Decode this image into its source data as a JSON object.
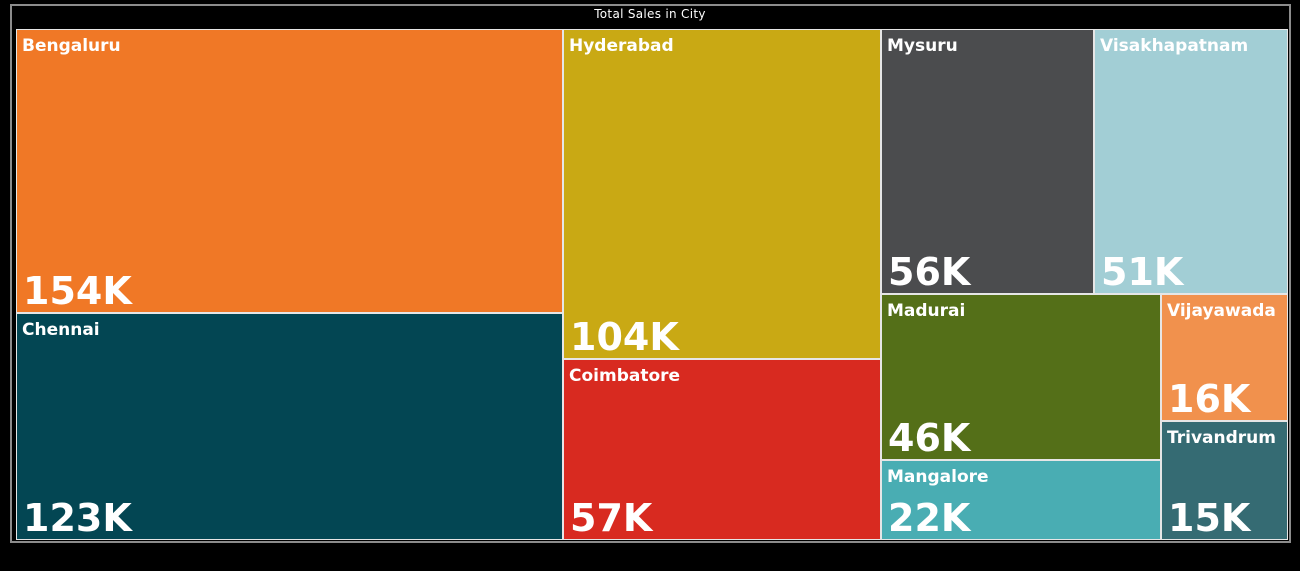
{
  "chart_data": {
    "type": "treemap",
    "title": "Total Sales in City",
    "items": [
      {
        "name": "Bengaluru",
        "value": 154000,
        "label": "154K",
        "color": "#f07826"
      },
      {
        "name": "Chennai",
        "value": 123000,
        "label": "123K",
        "color": "#034653"
      },
      {
        "name": "Hyderabad",
        "value": 104000,
        "label": "104K",
        "color": "#c9a914"
      },
      {
        "name": "Coimbatore",
        "value": 57000,
        "label": "57K",
        "color": "#d82a20"
      },
      {
        "name": "Mysuru",
        "value": 56000,
        "label": "56K",
        "color": "#4b4c4e"
      },
      {
        "name": "Visakhapatnam",
        "value": 51000,
        "label": "51K",
        "color": "#a2ced5"
      },
      {
        "name": "Madurai",
        "value": 46000,
        "label": "46K",
        "color": "#546f18"
      },
      {
        "name": "Mangalore",
        "value": 22000,
        "label": "22K",
        "color": "#49adb3"
      },
      {
        "name": "Vijayawada",
        "value": 16000,
        "label": "16K",
        "color": "#f1914d"
      },
      {
        "name": "Trivandrum",
        "value": 15000,
        "label": "15K",
        "color": "#356b73"
      }
    ]
  }
}
